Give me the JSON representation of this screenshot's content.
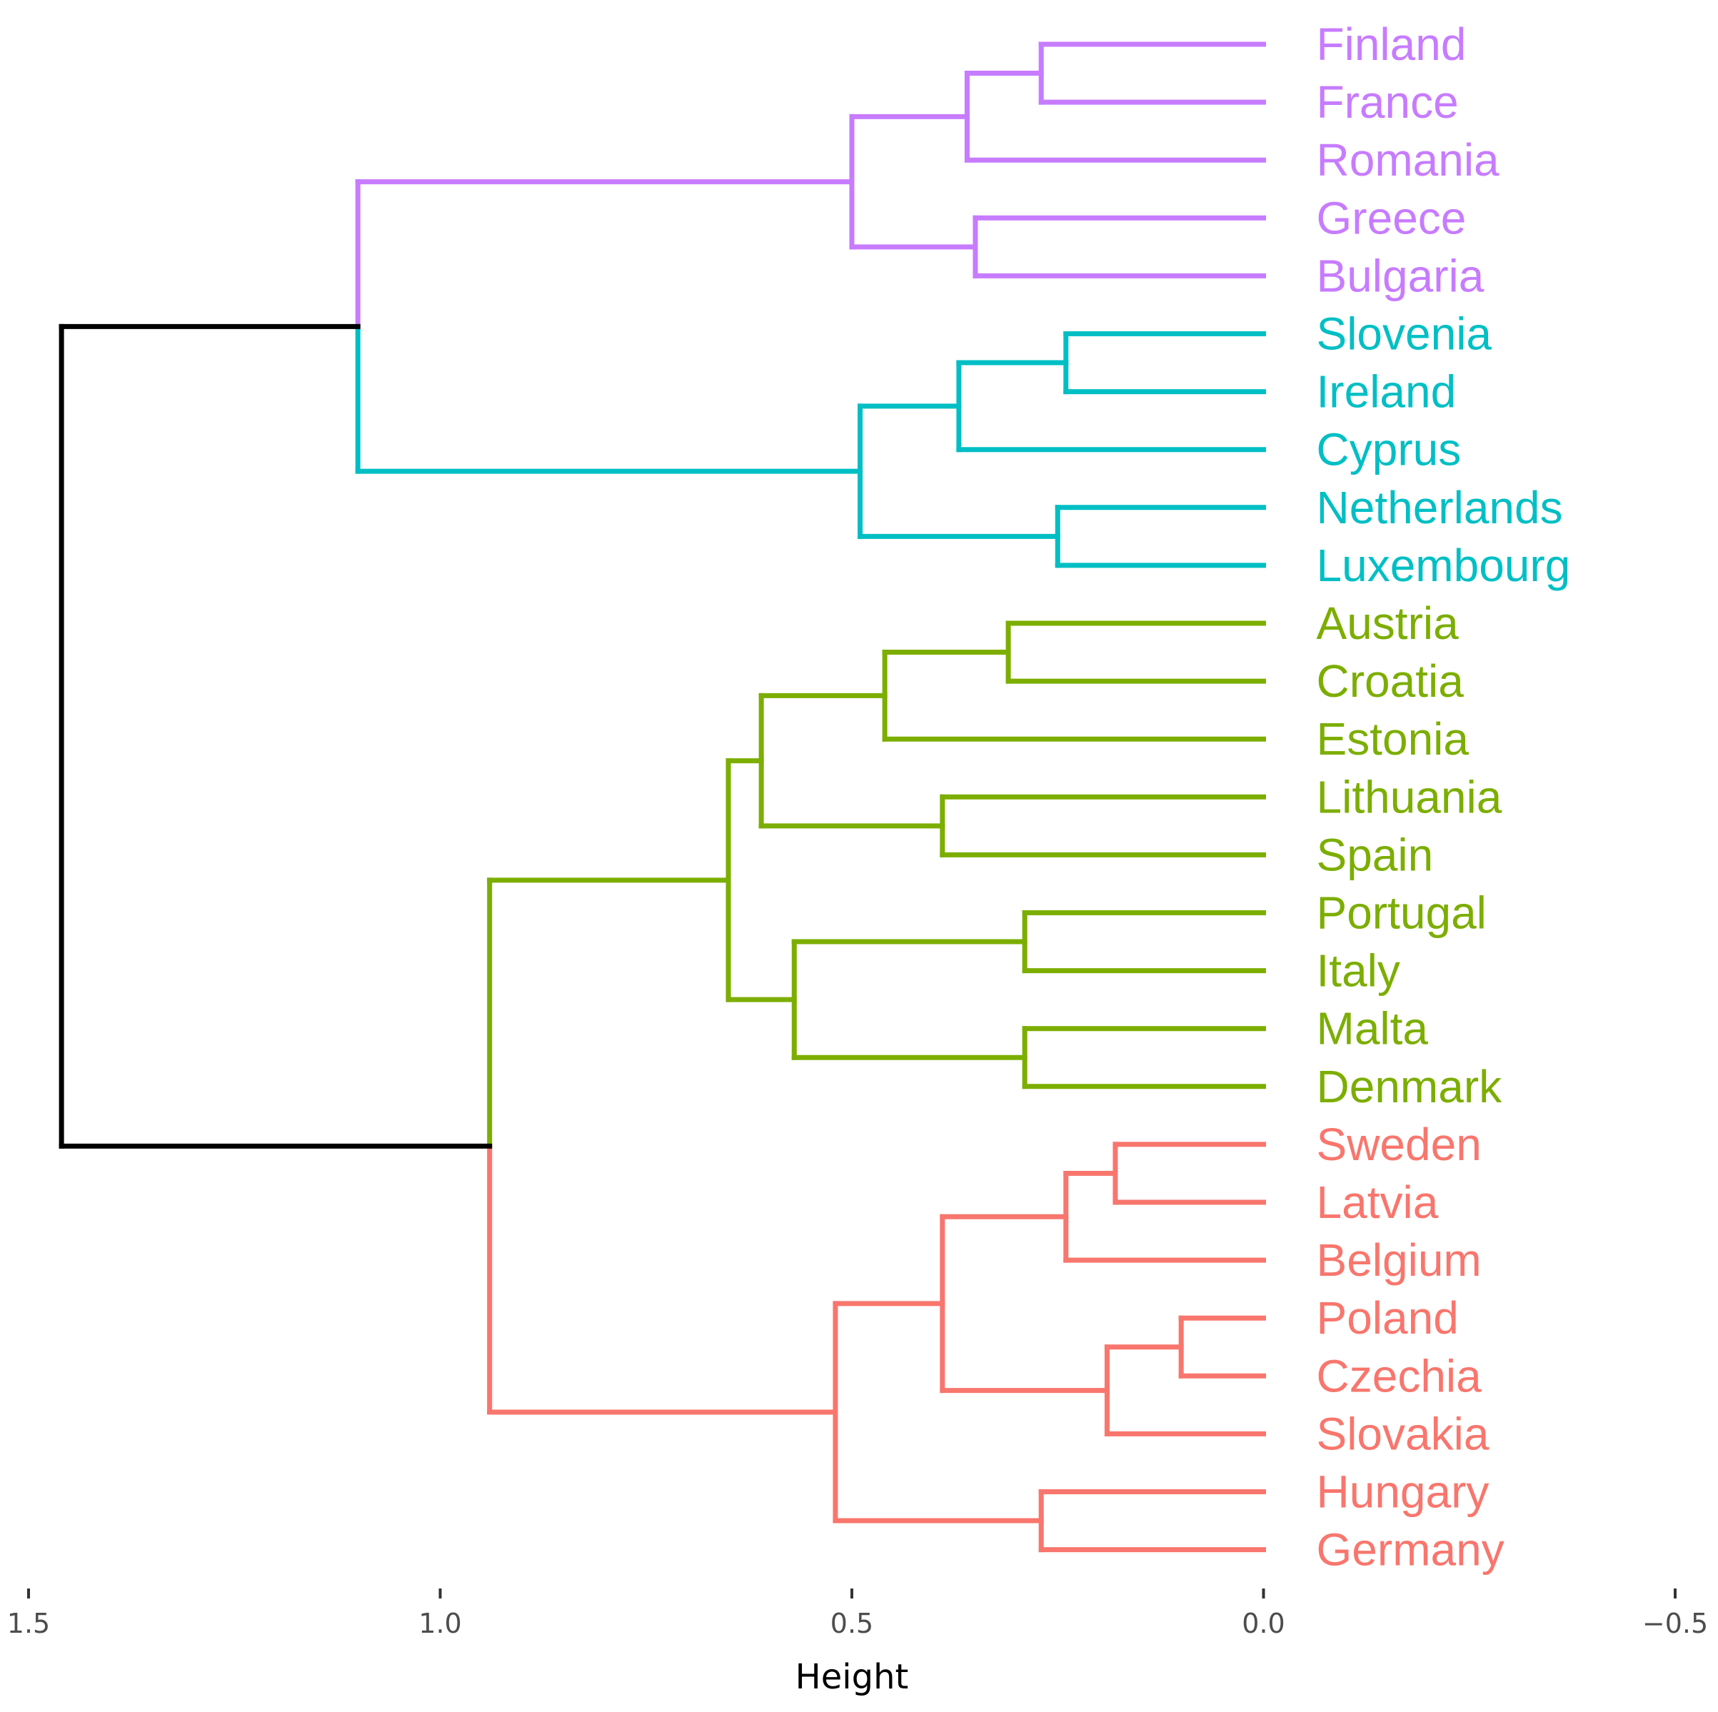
{
  "chart_data": {
    "type": "dendrogram",
    "orientation": "horizontal",
    "xlabel": "Height",
    "xlim": [
      1.5,
      -0.5
    ],
    "x_ticks": [
      {
        "value": 1.5,
        "label": "1.5"
      },
      {
        "value": 1.0,
        "label": "1.0"
      },
      {
        "value": 0.5,
        "label": "0.5"
      },
      {
        "value": 0.0,
        "label": "0.0"
      },
      {
        "value": -0.5,
        "label": "−0.5"
      }
    ],
    "colors": {
      "root": "#000000",
      "cluster_1": "#C77CFF",
      "cluster_2": "#00BFC4",
      "cluster_3": "#7CAE00",
      "cluster_4": "#F8766D"
    },
    "leaves": [
      {
        "label": "Finland",
        "cluster": "cluster_1"
      },
      {
        "label": "France",
        "cluster": "cluster_1"
      },
      {
        "label": "Romania",
        "cluster": "cluster_1"
      },
      {
        "label": "Greece",
        "cluster": "cluster_1"
      },
      {
        "label": "Bulgaria",
        "cluster": "cluster_1"
      },
      {
        "label": "Slovenia",
        "cluster": "cluster_2"
      },
      {
        "label": "Ireland",
        "cluster": "cluster_2"
      },
      {
        "label": "Cyprus",
        "cluster": "cluster_2"
      },
      {
        "label": "Netherlands",
        "cluster": "cluster_2"
      },
      {
        "label": "Luxembourg",
        "cluster": "cluster_2"
      },
      {
        "label": "Austria",
        "cluster": "cluster_3"
      },
      {
        "label": "Croatia",
        "cluster": "cluster_3"
      },
      {
        "label": "Estonia",
        "cluster": "cluster_3"
      },
      {
        "label": "Lithuania",
        "cluster": "cluster_3"
      },
      {
        "label": "Spain",
        "cluster": "cluster_3"
      },
      {
        "label": "Portugal",
        "cluster": "cluster_3"
      },
      {
        "label": "Italy",
        "cluster": "cluster_3"
      },
      {
        "label": "Malta",
        "cluster": "cluster_3"
      },
      {
        "label": "Denmark",
        "cluster": "cluster_3"
      },
      {
        "label": "Sweden",
        "cluster": "cluster_4"
      },
      {
        "label": "Latvia",
        "cluster": "cluster_4"
      },
      {
        "label": "Belgium",
        "cluster": "cluster_4"
      },
      {
        "label": "Poland",
        "cluster": "cluster_4"
      },
      {
        "label": "Czechia",
        "cluster": "cluster_4"
      },
      {
        "label": "Slovakia",
        "cluster": "cluster_4"
      },
      {
        "label": "Hungary",
        "cluster": "cluster_4"
      },
      {
        "label": "Germany",
        "cluster": "cluster_4"
      }
    ],
    "merges": [
      {
        "id": "m1",
        "children": [
          {
            "leaf": 0
          },
          {
            "leaf": 1
          }
        ],
        "height": 0.27,
        "color": "cluster_1"
      },
      {
        "id": "m2",
        "children": [
          {
            "node": "m1"
          },
          {
            "leaf": 2
          }
        ],
        "height": 0.36,
        "color": "cluster_1"
      },
      {
        "id": "m3",
        "children": [
          {
            "leaf": 3
          },
          {
            "leaf": 4
          }
        ],
        "height": 0.35,
        "color": "cluster_1"
      },
      {
        "id": "m4",
        "children": [
          {
            "node": "m2"
          },
          {
            "node": "m3"
          }
        ],
        "height": 0.5,
        "color": "cluster_1"
      },
      {
        "id": "m5",
        "children": [
          {
            "leaf": 5
          },
          {
            "leaf": 6
          }
        ],
        "height": 0.24,
        "color": "cluster_2"
      },
      {
        "id": "m6",
        "children": [
          {
            "node": "m5"
          },
          {
            "leaf": 7
          }
        ],
        "height": 0.37,
        "color": "cluster_2"
      },
      {
        "id": "m7",
        "children": [
          {
            "leaf": 8
          },
          {
            "leaf": 9
          }
        ],
        "height": 0.25,
        "color": "cluster_2"
      },
      {
        "id": "m8",
        "children": [
          {
            "node": "m6"
          },
          {
            "node": "m7"
          }
        ],
        "height": 0.49,
        "color": "cluster_2"
      },
      {
        "id": "m9",
        "children": [
          {
            "node": "m4"
          },
          {
            "node": "m8"
          }
        ],
        "height": 1.1,
        "color": "split",
        "top_color": "cluster_1",
        "bottom_color": "cluster_2"
      },
      {
        "id": "m10",
        "children": [
          {
            "leaf": 10
          },
          {
            "leaf": 11
          }
        ],
        "height": 0.31,
        "color": "cluster_3"
      },
      {
        "id": "m11",
        "children": [
          {
            "node": "m10"
          },
          {
            "leaf": 12
          }
        ],
        "height": 0.46,
        "color": "cluster_3"
      },
      {
        "id": "m12",
        "children": [
          {
            "leaf": 13
          },
          {
            "leaf": 14
          }
        ],
        "height": 0.39,
        "color": "cluster_3"
      },
      {
        "id": "m13",
        "children": [
          {
            "node": "m11"
          },
          {
            "node": "m12"
          }
        ],
        "height": 0.61,
        "color": "cluster_3"
      },
      {
        "id": "m14",
        "children": [
          {
            "leaf": 15
          },
          {
            "leaf": 16
          }
        ],
        "height": 0.29,
        "color": "cluster_3"
      },
      {
        "id": "m15",
        "children": [
          {
            "leaf": 17
          },
          {
            "leaf": 18
          }
        ],
        "height": 0.29,
        "color": "cluster_3"
      },
      {
        "id": "m16",
        "children": [
          {
            "node": "m14"
          },
          {
            "node": "m15"
          }
        ],
        "height": 0.57,
        "color": "cluster_3"
      },
      {
        "id": "m17",
        "children": [
          {
            "node": "m13"
          },
          {
            "node": "m16"
          }
        ],
        "height": 0.65,
        "color": "cluster_3"
      },
      {
        "id": "m18",
        "children": [
          {
            "leaf": 19
          },
          {
            "leaf": 20
          }
        ],
        "height": 0.18,
        "color": "cluster_4"
      },
      {
        "id": "m19",
        "children": [
          {
            "node": "m18"
          },
          {
            "leaf": 21
          }
        ],
        "height": 0.24,
        "color": "cluster_4"
      },
      {
        "id": "m20",
        "children": [
          {
            "leaf": 22
          },
          {
            "leaf": 23
          }
        ],
        "height": 0.1,
        "color": "cluster_4"
      },
      {
        "id": "m21",
        "children": [
          {
            "node": "m20"
          },
          {
            "leaf": 24
          }
        ],
        "height": 0.19,
        "color": "cluster_4"
      },
      {
        "id": "m22",
        "children": [
          {
            "node": "m19"
          },
          {
            "node": "m21"
          }
        ],
        "height": 0.39,
        "color": "cluster_4"
      },
      {
        "id": "m23",
        "children": [
          {
            "leaf": 25
          },
          {
            "leaf": 26
          }
        ],
        "height": 0.27,
        "color": "cluster_4"
      },
      {
        "id": "m24",
        "children": [
          {
            "node": "m22"
          },
          {
            "node": "m23"
          }
        ],
        "height": 0.52,
        "color": "cluster_4"
      },
      {
        "id": "m25",
        "children": [
          {
            "node": "m17"
          },
          {
            "node": "m24"
          }
        ],
        "height": 0.94,
        "color": "split",
        "top_color": "cluster_3",
        "bottom_color": "cluster_4"
      },
      {
        "id": "m26",
        "children": [
          {
            "node": "m9"
          },
          {
            "node": "m25"
          }
        ],
        "height": 1.46,
        "color": "root"
      }
    ]
  }
}
